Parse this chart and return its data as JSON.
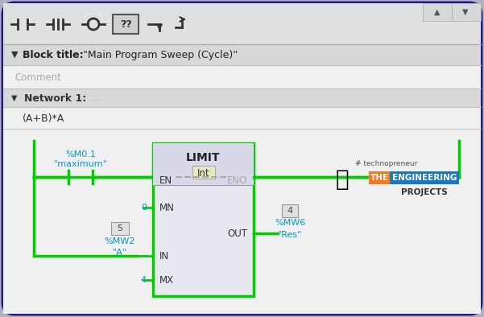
{
  "bg_color": "#f0f0f0",
  "inner_bg": "#f0f0f0",
  "border_color": "#1a1a8c",
  "toolbar_bg": "#e0e0e0",
  "block_title_text": "Block title:  \"Main Program Sweep (Cycle)\"",
  "comment_text": "Comment",
  "network_label": "Network 1:",
  "network_dots": "......",
  "formula": "(A+B)*A",
  "contact_var": "%M0.1",
  "contact_label": "\"maximum\"",
  "limit_title": "LIMIT",
  "limit_type": "Int",
  "en_label": "EN",
  "eno_label": "ENO",
  "mn_label": "MN",
  "out_label": "OUT",
  "in_label": "IN",
  "mx_label": "MX",
  "mn_val": "0",
  "in_val": "5",
  "in_var": "%MW2",
  "in_name": "\"A\"",
  "mx_val": "4",
  "out_val": "4",
  "out_var": "%MW6",
  "out_name": "\"Res\"",
  "green": "#00cc00",
  "cyan_text": "#0099cc",
  "gray_text": "#aaaaaa",
  "block_fill": "#e8e8f0",
  "block_header_fill": "#d8d8e8",
  "logo_orange": "#f47920",
  "logo_blue": "#1a78c2",
  "logo_text": "THE",
  "logo_main": "ENGINEERING",
  "logo_sub": "PROJECTS",
  "logo_tag": "# technopreneur"
}
